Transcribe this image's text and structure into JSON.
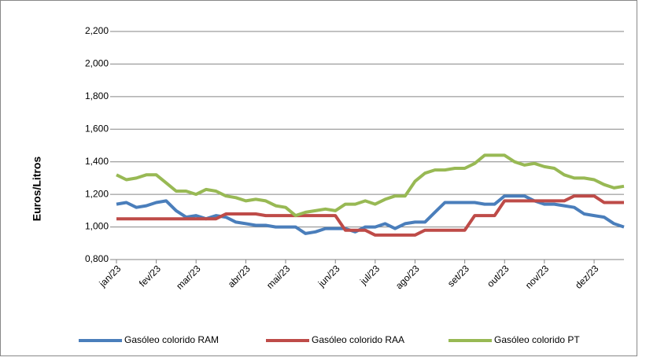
{
  "chart_data": {
    "type": "line",
    "y_label": "Euros/Litros",
    "categories": [
      "jan/23",
      null,
      null,
      null,
      "fev/23",
      null,
      null,
      null,
      "mar/23",
      null,
      null,
      null,
      null,
      "abr/23",
      null,
      null,
      null,
      "mai/23",
      null,
      null,
      null,
      null,
      "jun/23",
      null,
      null,
      null,
      "jul/23",
      null,
      null,
      null,
      "ago/23",
      null,
      null,
      null,
      null,
      "set/23",
      null,
      null,
      null,
      "out/23",
      null,
      null,
      null,
      "nov/23",
      null,
      null,
      null,
      null,
      "dez/23",
      null,
      null,
      null
    ],
    "series": [
      {
        "name": "Gasóleo colorido RAM",
        "color": "#4a7ebb",
        "values": [
          1.14,
          1.15,
          1.12,
          1.13,
          1.15,
          1.16,
          1.1,
          1.06,
          1.07,
          1.05,
          1.07,
          1.06,
          1.03,
          1.02,
          1.01,
          1.01,
          1.0,
          1.0,
          1.0,
          0.96,
          0.97,
          0.99,
          0.99,
          0.99,
          0.97,
          1.0,
          1.0,
          1.02,
          0.99,
          1.02,
          1.03,
          1.03,
          1.09,
          1.15,
          1.15,
          1.15,
          1.15,
          1.14,
          1.14,
          1.19,
          1.19,
          1.19,
          1.16,
          1.14,
          1.14,
          1.13,
          1.12,
          1.08,
          1.07,
          1.06,
          1.02,
          1.0
        ]
      },
      {
        "name": "Gasóleo colorido RAA",
        "color": "#be4b48",
        "values": [
          1.05,
          1.05,
          1.05,
          1.05,
          1.05,
          1.05,
          1.05,
          1.05,
          1.05,
          1.05,
          1.05,
          1.08,
          1.08,
          1.08,
          1.08,
          1.07,
          1.07,
          1.07,
          1.07,
          1.07,
          1.07,
          1.07,
          1.07,
          0.98,
          0.98,
          0.98,
          0.95,
          0.95,
          0.95,
          0.95,
          0.95,
          0.98,
          0.98,
          0.98,
          0.98,
          0.98,
          1.07,
          1.07,
          1.07,
          1.16,
          1.16,
          1.16,
          1.16,
          1.16,
          1.16,
          1.16,
          1.19,
          1.19,
          1.19,
          1.15,
          1.15,
          1.15
        ]
      },
      {
        "name": "Gasóleo colorido PT",
        "color": "#98b954",
        "values": [
          1.32,
          1.29,
          1.3,
          1.32,
          1.32,
          1.27,
          1.22,
          1.22,
          1.2,
          1.23,
          1.22,
          1.19,
          1.18,
          1.16,
          1.17,
          1.16,
          1.13,
          1.12,
          1.07,
          1.09,
          1.1,
          1.11,
          1.1,
          1.14,
          1.14,
          1.16,
          1.14,
          1.17,
          1.19,
          1.19,
          1.28,
          1.33,
          1.35,
          1.35,
          1.36,
          1.36,
          1.39,
          1.44,
          1.44,
          1.44,
          1.4,
          1.38,
          1.39,
          1.37,
          1.36,
          1.32,
          1.3,
          1.3,
          1.29,
          1.26,
          1.24,
          1.25
        ]
      }
    ],
    "ylim": [
      0.8,
      2.2
    ],
    "yticks": [
      {
        "value": 0.8,
        "label": "0,800"
      },
      {
        "value": 1.0,
        "label": "1,000"
      },
      {
        "value": 1.2,
        "label": "1,200"
      },
      {
        "value": 1.4,
        "label": "1,400"
      },
      {
        "value": 1.6,
        "label": "1,600"
      },
      {
        "value": 1.8,
        "label": "1,800"
      },
      {
        "value": 2.0,
        "label": "2,000"
      },
      {
        "value": 2.2,
        "label": "2,200"
      }
    ],
    "grid": true
  }
}
